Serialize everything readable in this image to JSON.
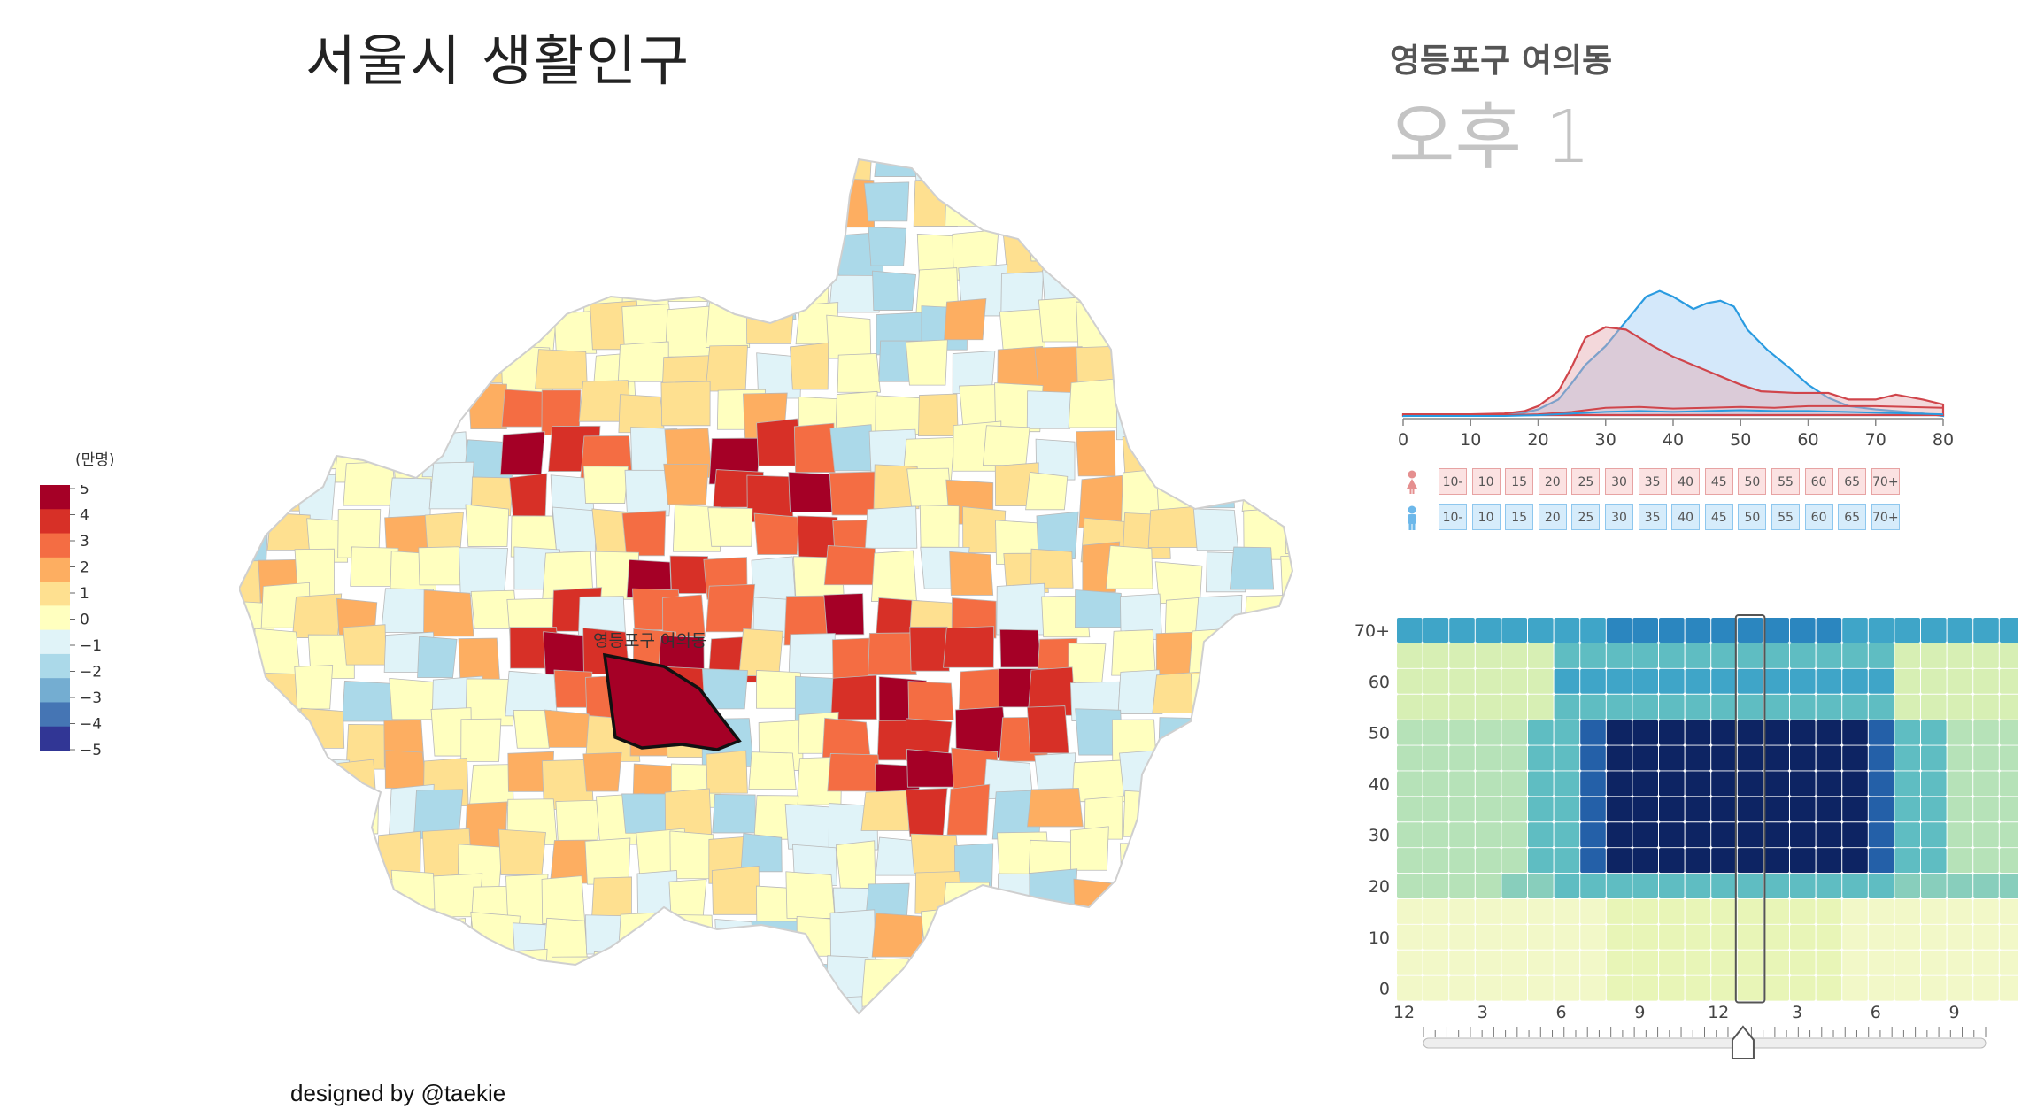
{
  "title": "서울시 생활인구",
  "credit": "designed by @taekie",
  "selected": {
    "region": "영등포구 여의동",
    "time_label": "오후 1",
    "map_label": "영등포구 여의동"
  },
  "legend": {
    "unit": "(만명)",
    "ticks": [
      "5",
      "4",
      "3",
      "2",
      "1",
      "0",
      "−1",
      "−2",
      "−3",
      "−4",
      "−5"
    ],
    "colors": [
      "#a50026",
      "#d73027",
      "#f46d43",
      "#fdae61",
      "#fee090",
      "#ffffbf",
      "#e0f3f8",
      "#abd9e9",
      "#74add1",
      "#4575b4",
      "#313695"
    ]
  },
  "density": {
    "x_ticks": [
      "0",
      "10",
      "20",
      "30",
      "40",
      "50",
      "60",
      "70",
      "80"
    ],
    "female_color": "#d0454b",
    "male_color": "#2a9be0"
  },
  "age_buttons": [
    "10-",
    "10",
    "15",
    "20",
    "25",
    "30",
    "35",
    "40",
    "45",
    "50",
    "55",
    "60",
    "65",
    "70+"
  ],
  "heatmap": {
    "y_ticks": [
      "70+",
      "60",
      "50",
      "40",
      "30",
      "20",
      "10",
      "0"
    ],
    "x_ticks": [
      "12",
      "3",
      "6",
      "9",
      "12",
      "3",
      "6",
      "9"
    ],
    "slider_hour": 13
  },
  "icons": {
    "female": "female-icon",
    "male": "male-icon"
  }
}
